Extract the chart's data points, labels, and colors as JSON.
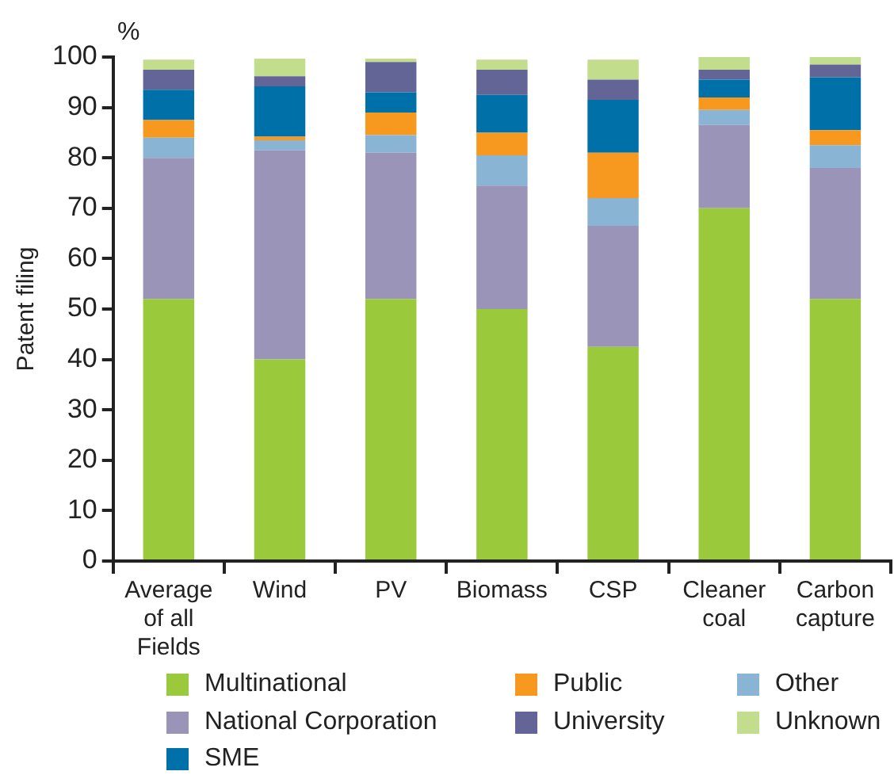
{
  "chart_data": {
    "type": "bar",
    "stacked": true,
    "ylabel": "Patent filing",
    "annotations": [
      "%"
    ],
    "categories": [
      "Average of all Fields",
      "Wind",
      "PV",
      "Biomass",
      "CSP",
      "Cleaner coal",
      "Carbon capture"
    ],
    "series": [
      {
        "name": "Multinational",
        "color": "#9aca3c",
        "values": [
          52,
          40,
          52,
          50,
          42.5,
          70,
          52
        ]
      },
      {
        "name": "National Corporation",
        "color": "#9a95b8",
        "values": [
          28,
          41.5,
          29,
          24.5,
          24,
          16.5,
          26
        ]
      },
      {
        "name": "Other",
        "color": "#8ab4d4",
        "values": [
          4,
          2,
          3.5,
          6,
          5.5,
          3,
          4.5
        ]
      },
      {
        "name": "Public",
        "color": "#f7991f",
        "values": [
          3.5,
          0.7,
          4.5,
          4.5,
          9,
          2.5,
          3
        ]
      },
      {
        "name": "SME",
        "color": "#0070a8",
        "values": [
          6,
          10,
          4,
          7.5,
          10.5,
          3.5,
          10.5
        ]
      },
      {
        "name": "University",
        "color": "#646597",
        "values": [
          4,
          2,
          6,
          5,
          4,
          2,
          2.5
        ]
      },
      {
        "name": "Unknown",
        "color": "#c2dd8c",
        "values": [
          2,
          3.5,
          0.7,
          2,
          4,
          2.5,
          1.5
        ]
      }
    ],
    "ylim": [
      0,
      100
    ],
    "yticks": [
      0,
      10,
      20,
      30,
      40,
      50,
      60,
      70,
      80,
      90,
      100
    ],
    "grid": false,
    "legend": "bottom"
  }
}
